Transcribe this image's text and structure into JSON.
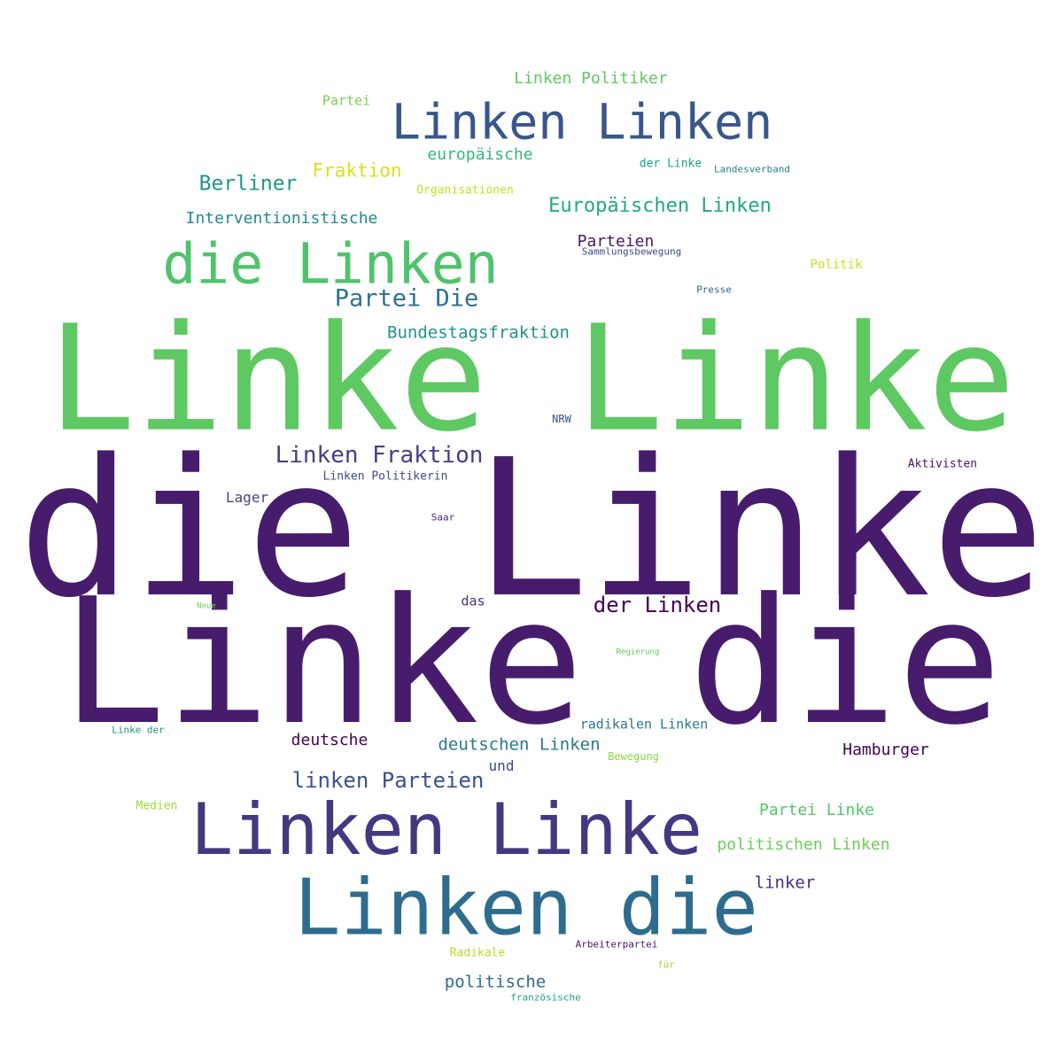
{
  "words": [
    {
      "text": "die Linke",
      "color": "#471c6d"
    },
    {
      "text": "Linke die",
      "color": "#471c6d"
    },
    {
      "text": "Linke Linke",
      "color": "#5ec962"
    },
    {
      "text": "Linken Linke",
      "color": "#453880"
    },
    {
      "text": "Linken die",
      "color": "#2e6c8e"
    },
    {
      "text": "die Linken",
      "color": "#4ec36b"
    },
    {
      "text": "Linken Linken",
      "color": "#39568c"
    },
    {
      "text": "Partei Die",
      "color": "#2c728e"
    },
    {
      "text": "Linken Fraktion",
      "color": "#433e85"
    },
    {
      "text": "linken Parteien",
      "color": "#3b528b"
    },
    {
      "text": "der Linken",
      "color": "#440154"
    },
    {
      "text": "Europäischen Linken",
      "color": "#22a884"
    },
    {
      "text": "Berliner",
      "color": "#1f968b"
    },
    {
      "text": "Bundestagsfraktion",
      "color": "#21918c"
    },
    {
      "text": "Interventionistische",
      "color": "#23898e"
    },
    {
      "text": "Linken Politiker",
      "color": "#5ec962"
    },
    {
      "text": "Fraktion",
      "color": "#d8e219"
    },
    {
      "text": "europäische",
      "color": "#35b779"
    },
    {
      "text": "deutschen Linken",
      "color": "#2a788e"
    },
    {
      "text": "radikalen Linken",
      "color": "#2a788e"
    },
    {
      "text": "politische",
      "color": "#31688e"
    },
    {
      "text": "Partei Linke",
      "color": "#54c568"
    },
    {
      "text": "politischen Linken",
      "color": "#6ccd5a"
    },
    {
      "text": "Hamburger",
      "color": "#440154"
    },
    {
      "text": "deutsche",
      "color": "#440154"
    },
    {
      "text": "linker",
      "color": "#46307e"
    },
    {
      "text": "Parteien",
      "color": "#481769"
    },
    {
      "text": "Lager",
      "color": "#414487"
    },
    {
      "text": "und",
      "color": "#3e4989"
    },
    {
      "text": "das",
      "color": "#46327e"
    },
    {
      "text": "Partei",
      "color": "#7ad151"
    },
    {
      "text": "Organisationen",
      "color": "#c2df23"
    },
    {
      "text": "der Linke",
      "color": "#1fa187"
    },
    {
      "text": "Landesverband",
      "color": "#26828e"
    },
    {
      "text": "Sammlungsbewegung",
      "color": "#3e4a89"
    },
    {
      "text": "Politik",
      "color": "#c8e020"
    },
    {
      "text": "Presse",
      "color": "#355f8d"
    },
    {
      "text": "NRW",
      "color": "#3b528b"
    },
    {
      "text": "Aktivisten",
      "color": "#481467"
    },
    {
      "text": "Linken Politikerin",
      "color": "#3e4a89"
    },
    {
      "text": "Saar",
      "color": "#482878"
    },
    {
      "text": "Neue",
      "color": "#6ece58"
    },
    {
      "text": "Regierung",
      "color": "#5ec962"
    },
    {
      "text": "Linke der",
      "color": "#20928c"
    },
    {
      "text": "Bewegung",
      "color": "#8fd744"
    },
    {
      "text": "Medien",
      "color": "#a0da39"
    },
    {
      "text": "Radikale",
      "color": "#b5de2b"
    },
    {
      "text": "Arbeiterpartei",
      "color": "#471365"
    },
    {
      "text": "für",
      "color": "#a0da39"
    },
    {
      "text": "französische",
      "color": "#1f9e89"
    }
  ]
}
